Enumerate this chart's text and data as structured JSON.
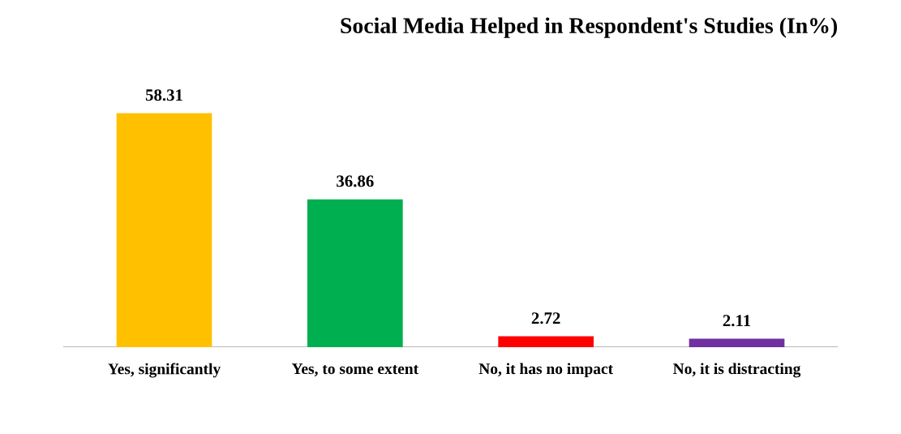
{
  "chart_data": {
    "type": "bar",
    "title": "Social Media Helped in Respondent's Studies (In%)",
    "categories": [
      "Yes, significantly",
      "Yes, to some extent",
      "No, it has no impact",
      "No, it is distracting"
    ],
    "values": [
      58.31,
      36.86,
      2.72,
      2.11
    ],
    "colors": [
      "#ffc000",
      "#00b050",
      "#ff0000",
      "#7030a0"
    ],
    "data_labels": true,
    "tick_labels": "x",
    "grid": false,
    "legend": false
  }
}
